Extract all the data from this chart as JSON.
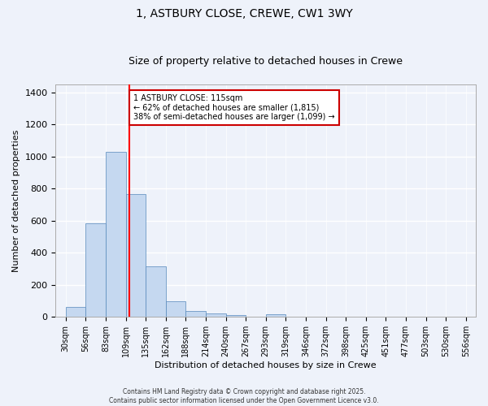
{
  "title": "1, ASTBURY CLOSE, CREWE, CW1 3WY",
  "subtitle": "Size of property relative to detached houses in Crewe",
  "xlabel": "Distribution of detached houses by size in Crewe",
  "ylabel": "Number of detached properties",
  "categories": [
    "30sqm",
    "56sqm",
    "83sqm",
    "109sqm",
    "135sqm",
    "162sqm",
    "188sqm",
    "214sqm",
    "240sqm",
    "267sqm",
    "293sqm",
    "319sqm",
    "346sqm",
    "372sqm",
    "398sqm",
    "425sqm",
    "451sqm",
    "477sqm",
    "503sqm",
    "530sqm",
    "556sqm"
  ],
  "bar_values": [
    65,
    585,
    1030,
    765,
    315,
    100,
    38,
    22,
    10,
    0,
    15
  ],
  "bar_positions": [
    0,
    1,
    2,
    3,
    4,
    5,
    6,
    7,
    8,
    10,
    11
  ],
  "bar_color": "#c5d8f0",
  "bar_edge_color": "#5588bb",
  "background_color": "#eef2fa",
  "grid_color": "#ffffff",
  "red_line_x": 2.5,
  "annotation_text": "1 ASTBURY CLOSE: 115sqm\n← 62% of detached houses are smaller (1,815)\n38% of semi-detached houses are larger (1,099) →",
  "annotation_box_color": "#ffffff",
  "annotation_box_edge_color": "#cc0000",
  "ylim": [
    0,
    1450
  ],
  "yticks": [
    0,
    200,
    400,
    600,
    800,
    1000,
    1200,
    1400
  ],
  "footer": "Contains HM Land Registry data © Crown copyright and database right 2025.\nContains public sector information licensed under the Open Government Licence v3.0.",
  "title_fontsize": 10,
  "subtitle_fontsize": 9,
  "label_fontsize": 8,
  "tick_fontsize": 7,
  "annotation_fontsize": 7
}
